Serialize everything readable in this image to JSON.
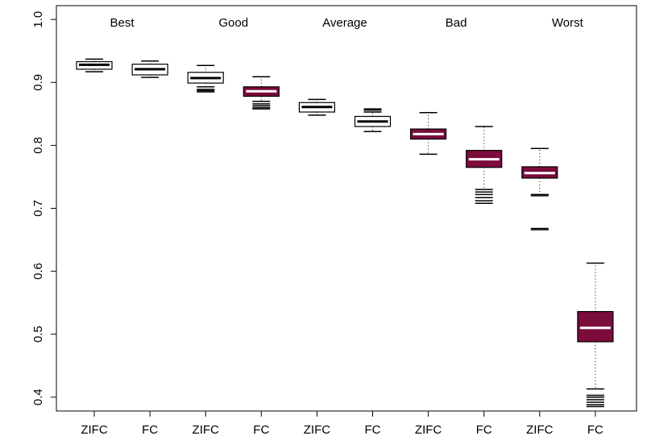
{
  "chart_data": {
    "type": "boxplot",
    "groups": [
      "Best",
      "Good",
      "Average",
      "Bad",
      "Worst"
    ],
    "categories": [
      "ZIFC",
      "FC",
      "ZIFC",
      "FC",
      "ZIFC",
      "FC",
      "ZIFC",
      "FC",
      "ZIFC",
      "FC"
    ],
    "colors": [
      "#ffffff",
      "#ffffff",
      "#ffffff",
      "#7b0c3c",
      "#ffffff",
      "#ffffff",
      "#7b0c3c",
      "#7b0c3c",
      "#7b0c3c",
      "#7b0c3c"
    ],
    "boxes": [
      {
        "whisker_low": 0.917,
        "q1": 0.921,
        "median": 0.928,
        "q3": 0.933,
        "whisker_high": 0.937,
        "outliers": []
      },
      {
        "whisker_low": 0.908,
        "q1": 0.912,
        "median": 0.921,
        "q3": 0.929,
        "whisker_high": 0.934,
        "outliers": []
      },
      {
        "whisker_low": 0.893,
        "q1": 0.899,
        "median": 0.907,
        "q3": 0.916,
        "whisker_high": 0.927,
        "outliers": [
          0.885,
          0.887,
          0.889
        ]
      },
      {
        "whisker_low": 0.87,
        "q1": 0.878,
        "median": 0.886,
        "q3": 0.893,
        "whisker_high": 0.909,
        "outliers": [
          0.858,
          0.86,
          0.863,
          0.866
        ]
      },
      {
        "whisker_low": 0.848,
        "q1": 0.853,
        "median": 0.861,
        "q3": 0.868,
        "whisker_high": 0.873,
        "outliers": []
      },
      {
        "whisker_low": 0.822,
        "q1": 0.83,
        "median": 0.838,
        "q3": 0.846,
        "whisker_high": 0.853,
        "outliers": [
          0.856,
          0.858
        ]
      },
      {
        "whisker_low": 0.786,
        "q1": 0.81,
        "median": 0.818,
        "q3": 0.826,
        "whisker_high": 0.852,
        "outliers": []
      },
      {
        "whisker_low": 0.73,
        "q1": 0.765,
        "median": 0.778,
        "q3": 0.792,
        "whisker_high": 0.83,
        "outliers": [
          0.708,
          0.712,
          0.717,
          0.722,
          0.726
        ]
      },
      {
        "whisker_low": 0.722,
        "q1": 0.748,
        "median": 0.756,
        "q3": 0.766,
        "whisker_high": 0.795,
        "outliers": [
          0.72,
          0.668,
          0.666
        ]
      },
      {
        "whisker_low": 0.413,
        "q1": 0.488,
        "median": 0.51,
        "q3": 0.536,
        "whisker_high": 0.613,
        "outliers": [
          0.385,
          0.388,
          0.392,
          0.396,
          0.4,
          0.403
        ]
      }
    ],
    "ylim": [
      0.378,
      1.022
    ],
    "yticks": [
      0.4,
      0.5,
      0.6,
      0.7,
      0.8,
      0.9,
      {
        "value": 1,
        "label": "1.0"
      }
    ]
  }
}
